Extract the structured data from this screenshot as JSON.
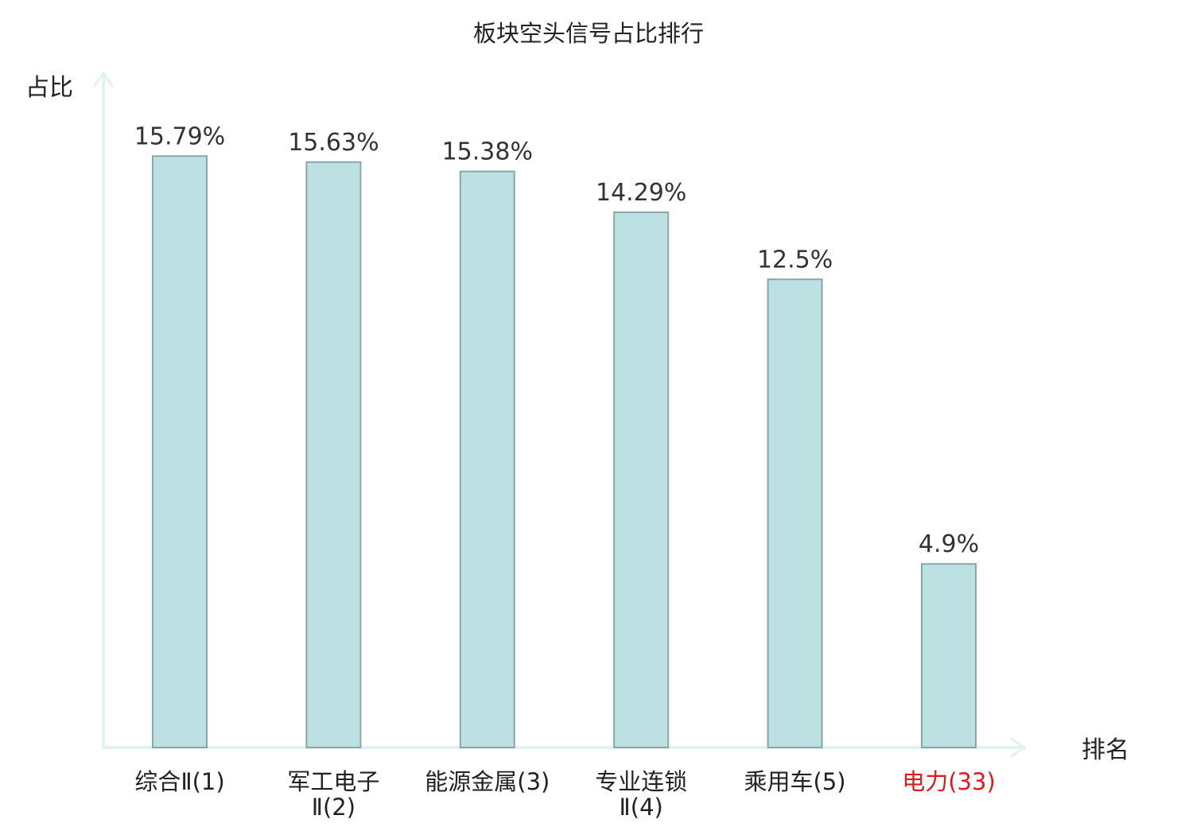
{
  "chart_data": {
    "type": "bar",
    "title": "板块空头信号占比排行",
    "ylabel": "占比",
    "xlabel": "排名",
    "ylim": [
      0,
      17
    ],
    "grid": false,
    "categories": [
      [
        "综合Ⅱ(1)"
      ],
      [
        "军工电子",
        "Ⅱ(2)"
      ],
      [
        "能源金属(3)"
      ],
      [
        "专业连锁",
        "Ⅱ(4)"
      ],
      [
        "乘用车(5)"
      ],
      [
        "电力(33)"
      ]
    ],
    "values": [
      15.79,
      15.63,
      15.38,
      14.29,
      12.5,
      4.9
    ],
    "value_labels": [
      "15.79%",
      "15.63%",
      "15.38%",
      "14.29%",
      "12.5%",
      "4.9%"
    ],
    "highlight_category_index": 5
  },
  "colors": {
    "bar_fill": "#bde0e3",
    "bar_stroke": "#8aa6a8",
    "axis": "#e0f3f1",
    "text": "#222222",
    "highlight_text": "#e0191e"
  }
}
